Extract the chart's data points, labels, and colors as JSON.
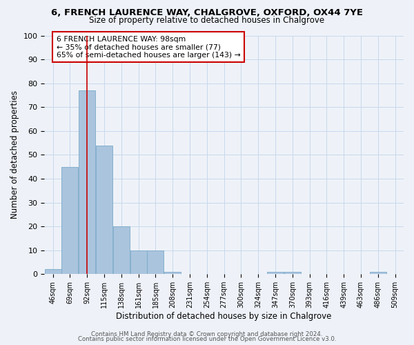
{
  "title": "6, FRENCH LAURENCE WAY, CHALGROVE, OXFORD, OX44 7YE",
  "subtitle": "Size of property relative to detached houses in Chalgrove",
  "xlabel": "Distribution of detached houses by size in Chalgrove",
  "ylabel": "Number of detached properties",
  "bin_labels": [
    "46sqm",
    "69sqm",
    "92sqm",
    "115sqm",
    "138sqm",
    "161sqm",
    "185sqm",
    "208sqm",
    "231sqm",
    "254sqm",
    "277sqm",
    "300sqm",
    "324sqm",
    "347sqm",
    "370sqm",
    "393sqm",
    "416sqm",
    "439sqm",
    "463sqm",
    "486sqm",
    "509sqm"
  ],
  "bar_values": [
    2,
    45,
    77,
    54,
    20,
    10,
    10,
    1,
    0,
    0,
    0,
    0,
    0,
    1,
    1,
    0,
    0,
    0,
    0,
    1,
    0
  ],
  "bar_color": "#aac4de",
  "bar_edge_color": "#7aaac8",
  "grid_color": "#c8d8ec",
  "bg_color": "#eef2f8",
  "vline_x": 2,
  "vline_color": "#cc0000",
  "annotation_text": "6 FRENCH LAURENCE WAY: 98sqm\n← 35% of detached houses are smaller (77)\n65% of semi-detached houses are larger (143) →",
  "annotation_box_color": "#ffffff",
  "annotation_box_edge": "#cc0000",
  "ylim": [
    0,
    100
  ],
  "yticks": [
    0,
    10,
    20,
    30,
    40,
    50,
    60,
    70,
    80,
    90,
    100
  ],
  "footer1": "Contains HM Land Registry data © Crown copyright and database right 2024.",
  "footer2": "Contains public sector information licensed under the Open Government Licence v3.0."
}
